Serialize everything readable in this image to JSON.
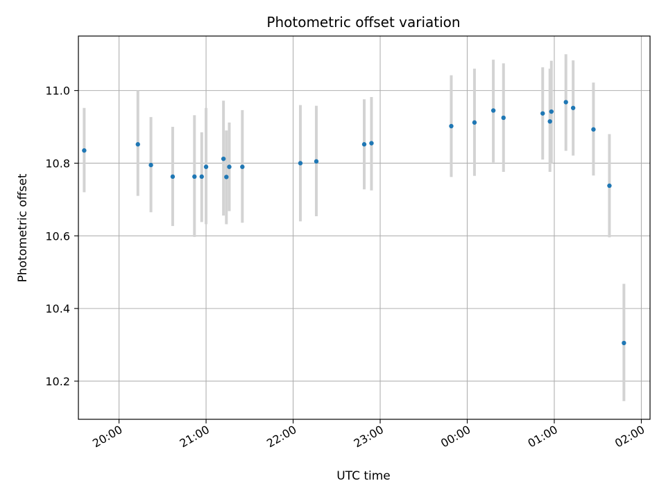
{
  "chart_data": {
    "type": "scatter",
    "title": "Photometric offset variation",
    "xlabel": "UTC time",
    "ylabel": "Photometric offset",
    "x_axis_kind": "time",
    "x_range": [
      "19:32",
      "02:06"
    ],
    "ylim": [
      10.095,
      11.15
    ],
    "x_ticks": [
      "20:00",
      "21:00",
      "22:00",
      "23:00",
      "00:00",
      "01:00",
      "02:00"
    ],
    "y_ticks": [
      "10.2",
      "10.4",
      "10.6",
      "10.8",
      "11.0"
    ],
    "grid": true,
    "colors": {
      "point": "#1f77b4",
      "errorbar": "#d3d3d3",
      "grid": "#b0b0b0"
    },
    "points": [
      {
        "x": "19:36",
        "y": 10.835,
        "yerr_low": 10.72,
        "yerr_high": 10.952
      },
      {
        "x": "20:13",
        "y": 10.852,
        "yerr_low": 10.71,
        "yerr_high": 11.0
      },
      {
        "x": "20:22",
        "y": 10.795,
        "yerr_low": 10.665,
        "yerr_high": 10.927
      },
      {
        "x": "20:37",
        "y": 10.763,
        "yerr_low": 10.627,
        "yerr_high": 10.9
      },
      {
        "x": "20:52",
        "y": 10.763,
        "yerr_low": 10.597,
        "yerr_high": 10.932
      },
      {
        "x": "20:57",
        "y": 10.763,
        "yerr_low": 10.638,
        "yerr_high": 10.885
      },
      {
        "x": "21:00",
        "y": 10.79,
        "yerr_low": 10.632,
        "yerr_high": 10.952
      },
      {
        "x": "21:12",
        "y": 10.812,
        "yerr_low": 10.656,
        "yerr_high": 10.972
      },
      {
        "x": "21:14",
        "y": 10.762,
        "yerr_low": 10.632,
        "yerr_high": 10.89
      },
      {
        "x": "21:16",
        "y": 10.79,
        "yerr_low": 10.668,
        "yerr_high": 10.912
      },
      {
        "x": "21:25",
        "y": 10.79,
        "yerr_low": 10.636,
        "yerr_high": 10.946
      },
      {
        "x": "22:05",
        "y": 10.8,
        "yerr_low": 10.64,
        "yerr_high": 10.96
      },
      {
        "x": "22:16",
        "y": 10.805,
        "yerr_low": 10.654,
        "yerr_high": 10.958
      },
      {
        "x": "22:49",
        "y": 10.852,
        "yerr_low": 10.728,
        "yerr_high": 10.976
      },
      {
        "x": "22:54",
        "y": 10.855,
        "yerr_low": 10.725,
        "yerr_high": 10.982
      },
      {
        "x": "23:49",
        "y": 10.902,
        "yerr_low": 10.762,
        "yerr_high": 11.042
      },
      {
        "x": "00:05",
        "y": 10.912,
        "yerr_low": 10.765,
        "yerr_high": 11.06
      },
      {
        "x": "00:18",
        "y": 10.945,
        "yerr_low": 10.802,
        "yerr_high": 11.085
      },
      {
        "x": "00:25",
        "y": 10.925,
        "yerr_low": 10.776,
        "yerr_high": 11.075
      },
      {
        "x": "00:52",
        "y": 10.937,
        "yerr_low": 10.81,
        "yerr_high": 11.064
      },
      {
        "x": "00:57",
        "y": 10.915,
        "yerr_low": 10.776,
        "yerr_high": 11.06
      },
      {
        "x": "00:58",
        "y": 10.942,
        "yerr_low": 10.8,
        "yerr_high": 11.082
      },
      {
        "x": "01:08",
        "y": 10.968,
        "yerr_low": 10.834,
        "yerr_high": 11.1
      },
      {
        "x": "01:13",
        "y": 10.952,
        "yerr_low": 10.821,
        "yerr_high": 11.083
      },
      {
        "x": "01:27",
        "y": 10.893,
        "yerr_low": 10.766,
        "yerr_high": 11.022
      },
      {
        "x": "01:38",
        "y": 10.738,
        "yerr_low": 10.596,
        "yerr_high": 10.88
      },
      {
        "x": "01:48",
        "y": 10.305,
        "yerr_low": 10.145,
        "yerr_high": 10.468
      }
    ]
  }
}
